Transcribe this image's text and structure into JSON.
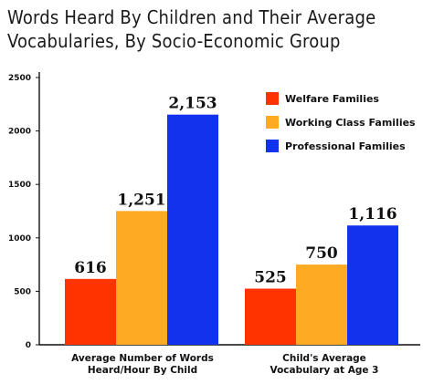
{
  "chart_data": {
    "type": "bar",
    "title_lines": [
      "Words Heard By Children and Their Average",
      "Vocabularies, By Socio-Economic Group"
    ],
    "categories": [
      {
        "lines": [
          "Average Number of Words",
          "Heard/Hour By Child"
        ]
      },
      {
        "lines": [
          "Child's Average",
          "Vocabulary at Age 3"
        ]
      }
    ],
    "series": [
      {
        "name": "Welfare Families",
        "color": "#ff3300",
        "values": [
          616,
          525
        ],
        "labels": [
          "616",
          "525"
        ]
      },
      {
        "name": "Working Class Families",
        "color": "#ffaa22",
        "values": [
          1251,
          750
        ],
        "labels": [
          "1,251",
          "750"
        ]
      },
      {
        "name": "Professional Families",
        "color": "#1133ee",
        "values": [
          2153,
          1116
        ],
        "labels": [
          "2,153",
          "1,116"
        ]
      }
    ],
    "yticks": [
      0,
      500,
      1000,
      1500,
      2000,
      2500
    ],
    "ylim": [
      0,
      2500
    ],
    "grid": false,
    "legend_position": "top-right"
  }
}
